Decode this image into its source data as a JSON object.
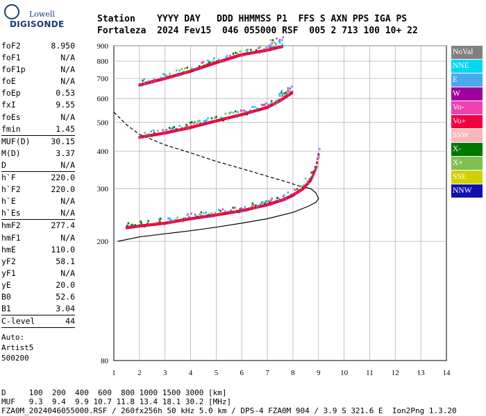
{
  "logo": {
    "top": "Lowell",
    "bottom": "DIGISONDE"
  },
  "header": {
    "line1": "Station    YYYY DAY   DDD HHMMSS P1  FFS S AXN PPS IGA PS",
    "line2": "Fortaleza  2024 Fev15  046 055000 RSF  005 2 713 100 10+ 22"
  },
  "params": {
    "group1": [
      {
        "label": "foF2",
        "value": "8.950"
      },
      {
        "label": "foF1",
        "value": "N/A"
      },
      {
        "label": "foF1p",
        "value": "N/A"
      },
      {
        "label": "foE",
        "value": "N/A"
      },
      {
        "label": "foEp",
        "value": "0.53"
      },
      {
        "label": "fxI",
        "value": "9.55"
      },
      {
        "label": "foEs",
        "value": "N/A"
      },
      {
        "label": "fmin",
        "value": "1.45"
      }
    ],
    "group2": [
      {
        "label": "MUF(D)",
        "value": "30.15"
      },
      {
        "label": "M(D)",
        "value": "3.37"
      },
      {
        "label": "D",
        "value": "N/A"
      }
    ],
    "group3": [
      {
        "label": "h`F",
        "value": "220.0"
      },
      {
        "label": "h`F2",
        "value": "220.0"
      },
      {
        "label": "h`E",
        "value": "N/A"
      },
      {
        "label": "h`Es",
        "value": "N/A"
      }
    ],
    "group4": [
      {
        "label": "hmF2",
        "value": "277.4"
      },
      {
        "label": "hmF1",
        "value": "N/A"
      },
      {
        "label": "hmE",
        "value": "110.0"
      },
      {
        "label": "yF2",
        "value": "58.1"
      },
      {
        "label": "yF1",
        "value": "N/A"
      },
      {
        "label": "yE",
        "value": "20.0"
      },
      {
        "label": "B0",
        "value": "52.6"
      },
      {
        "label": "B1",
        "value": "3.04"
      }
    ],
    "group5": [
      {
        "label": "C-level",
        "value": "44"
      }
    ],
    "auto": [
      "Auto:",
      "Artist5",
      "500200"
    ]
  },
  "legend": [
    {
      "label": "NoVal",
      "color": "#808080"
    },
    {
      "label": "NNE",
      "color": "#00d8f0"
    },
    {
      "label": "E",
      "color": "#4aa8f0"
    },
    {
      "label": "W",
      "color": "#a000a0"
    },
    {
      "label": "Vo-",
      "color": "#f040b0"
    },
    {
      "label": "Vo+",
      "color": "#f00040"
    },
    {
      "label": "SSW",
      "color": "#f8b8b8"
    },
    {
      "label": "X-",
      "color": "#007800"
    },
    {
      "label": "X+",
      "color": "#80c050"
    },
    {
      "label": "SSE",
      "color": "#d0d000"
    },
    {
      "label": "NNW",
      "color": "#1010b0"
    }
  ],
  "footer": {
    "d_row": "D     100  200  400  600  800 1000 1500 3000 [km]",
    "muf_row": "MUF   9.3  9.4  9.9 10.7 11.8 13.4 18.1 30.2 [MHz]",
    "info": "FZA0M_2024046055000.RSF / 260fx256h 50 kHz 5.0 km / DPS-4 FZA0M 904 / 3.9 S 321.6 E  Ion2Png 1.3.20"
  },
  "chart_data": {
    "type": "scatter",
    "xlim": [
      1,
      14
    ],
    "ylim": [
      80,
      900
    ],
    "x_ticks": [
      "1",
      "2",
      "3",
      "4",
      "5",
      "6",
      "7",
      "8",
      "9",
      "10",
      "11",
      "12",
      "13",
      "14"
    ],
    "y_ticks": [
      "200",
      "300",
      "400",
      "500",
      "600",
      "700",
      "800",
      "900"
    ],
    "y_tick_values": [
      200,
      300,
      400,
      500,
      600,
      700,
      800,
      900
    ],
    "y_scale": "log",
    "grid": true,
    "traces": [
      {
        "name": "",
        "color": "#f00040",
        "x": [
          1.5,
          2.0,
          3.0,
          4.0,
          5.0,
          6.0,
          7.0,
          7.6,
          8.0,
          8.4,
          8.7,
          8.9,
          9.0
        ],
        "y": [
          222,
          225,
          230,
          238,
          245,
          253,
          265,
          275,
          285,
          300,
          320,
          350,
          390
        ]
      },
      {
        "name": "",
        "color": "#f00040",
        "x": [
          2.0,
          3.0,
          4.0,
          5.0,
          6.0,
          7.0,
          7.5,
          8.0
        ],
        "y": [
          445,
          460,
          480,
          505,
          530,
          560,
          590,
          630
        ]
      },
      {
        "name": "",
        "color": "#f00040",
        "x": [
          2.0,
          3.0,
          4.0,
          5.0,
          6.0,
          7.0,
          7.6
        ],
        "y": [
          665,
          700,
          740,
          790,
          840,
          870,
          895
        ]
      }
    ],
    "curves": [
      {
        "name": "",
        "style": "solid",
        "x": [
          1.15,
          2,
          3,
          4,
          5,
          6,
          7,
          8,
          8.6,
          8.9,
          9.0,
          8.9,
          8.7,
          8.3
        ],
        "y": [
          200,
          207,
          212,
          217,
          223,
          230,
          238,
          250,
          262,
          270,
          278,
          290,
          300,
          305
        ]
      },
      {
        "name": "",
        "style": "dashed",
        "x": [
          1.0,
          1.5,
          2.0,
          3.0,
          4.0,
          5.0,
          6.0,
          7.0,
          7.8,
          8.3
        ],
        "y": [
          540,
          490,
          455,
          420,
          395,
          370,
          350,
          330,
          315,
          305
        ]
      }
    ]
  }
}
